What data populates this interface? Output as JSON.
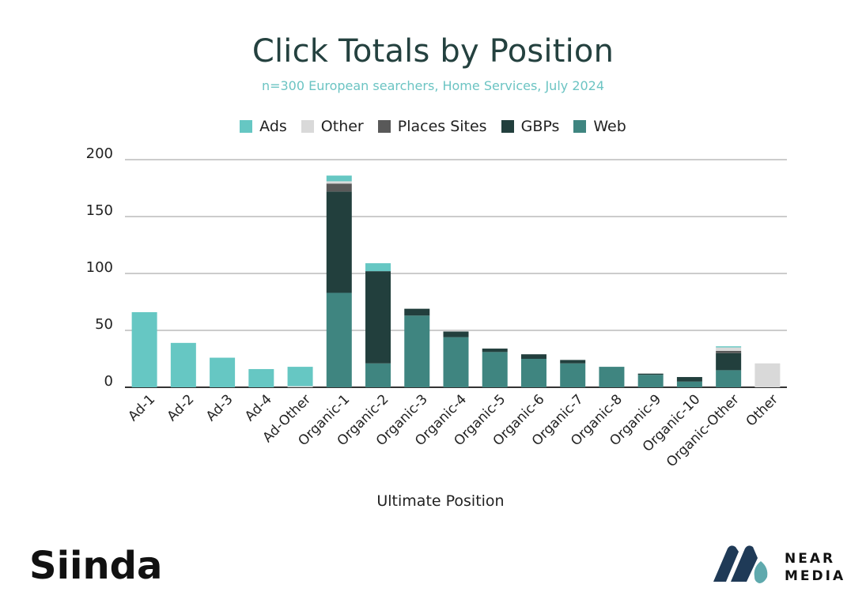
{
  "chart_data": {
    "type": "bar",
    "stacked": true,
    "title": "Click Totals by Position",
    "subtitle": "n=300 European searchers, Home Services, July 2024",
    "xlabel": "Ultimate Position",
    "ylabel": "",
    "ylim": [
      0,
      200
    ],
    "yticks": [
      0,
      50,
      100,
      150,
      200
    ],
    "grid": true,
    "legend_position": "top",
    "categories": [
      "Ad-1",
      "Ad-2",
      "Ad-3",
      "Ad-4",
      "Ad-Other",
      "Organic-1",
      "Organic-2",
      "Organic-3",
      "Organic-4",
      "Organic-5",
      "Organic-6",
      "Organic-7",
      "Organic-8",
      "Organic-9",
      "Organic-10",
      "Organic-Other",
      "Other"
    ],
    "series": [
      {
        "name": "Web",
        "color": "#3f8580",
        "values": [
          0,
          0,
          0,
          0,
          0,
          83,
          21,
          63,
          44,
          31,
          25,
          21,
          18,
          11,
          5,
          15,
          0
        ]
      },
      {
        "name": "GBPs",
        "color": "#223f3d",
        "values": [
          0,
          0,
          0,
          0,
          0,
          89,
          81,
          6,
          5,
          3,
          4,
          3,
          0,
          1,
          4,
          15,
          0
        ]
      },
      {
        "name": "Places Sites",
        "color": "#595959",
        "values": [
          0,
          0,
          0,
          0,
          0,
          7,
          0,
          0,
          0,
          0,
          0,
          0,
          0,
          0,
          0,
          2,
          0
        ]
      },
      {
        "name": "Other",
        "color": "#d9d9d9",
        "values": [
          0,
          0,
          0,
          0,
          1,
          2,
          0,
          0,
          0,
          0,
          0,
          0,
          0,
          0,
          0,
          3,
          21
        ]
      },
      {
        "name": "Ads",
        "color": "#66c7c3",
        "values": [
          66,
          39,
          26,
          16,
          17,
          5,
          7,
          0,
          0,
          0,
          0,
          0,
          0,
          0,
          0,
          1,
          0
        ]
      }
    ],
    "legend_order": [
      "Ads",
      "Other",
      "Places Sites",
      "GBPs",
      "Web"
    ]
  },
  "logos": {
    "left": "Siinda",
    "right_line1": "NEAR",
    "right_line2": "MEDIA"
  },
  "colors": {
    "title": "#24413f",
    "subtitle": "#6cc4c3",
    "grid": "#cccccc",
    "axis": "#333333"
  }
}
